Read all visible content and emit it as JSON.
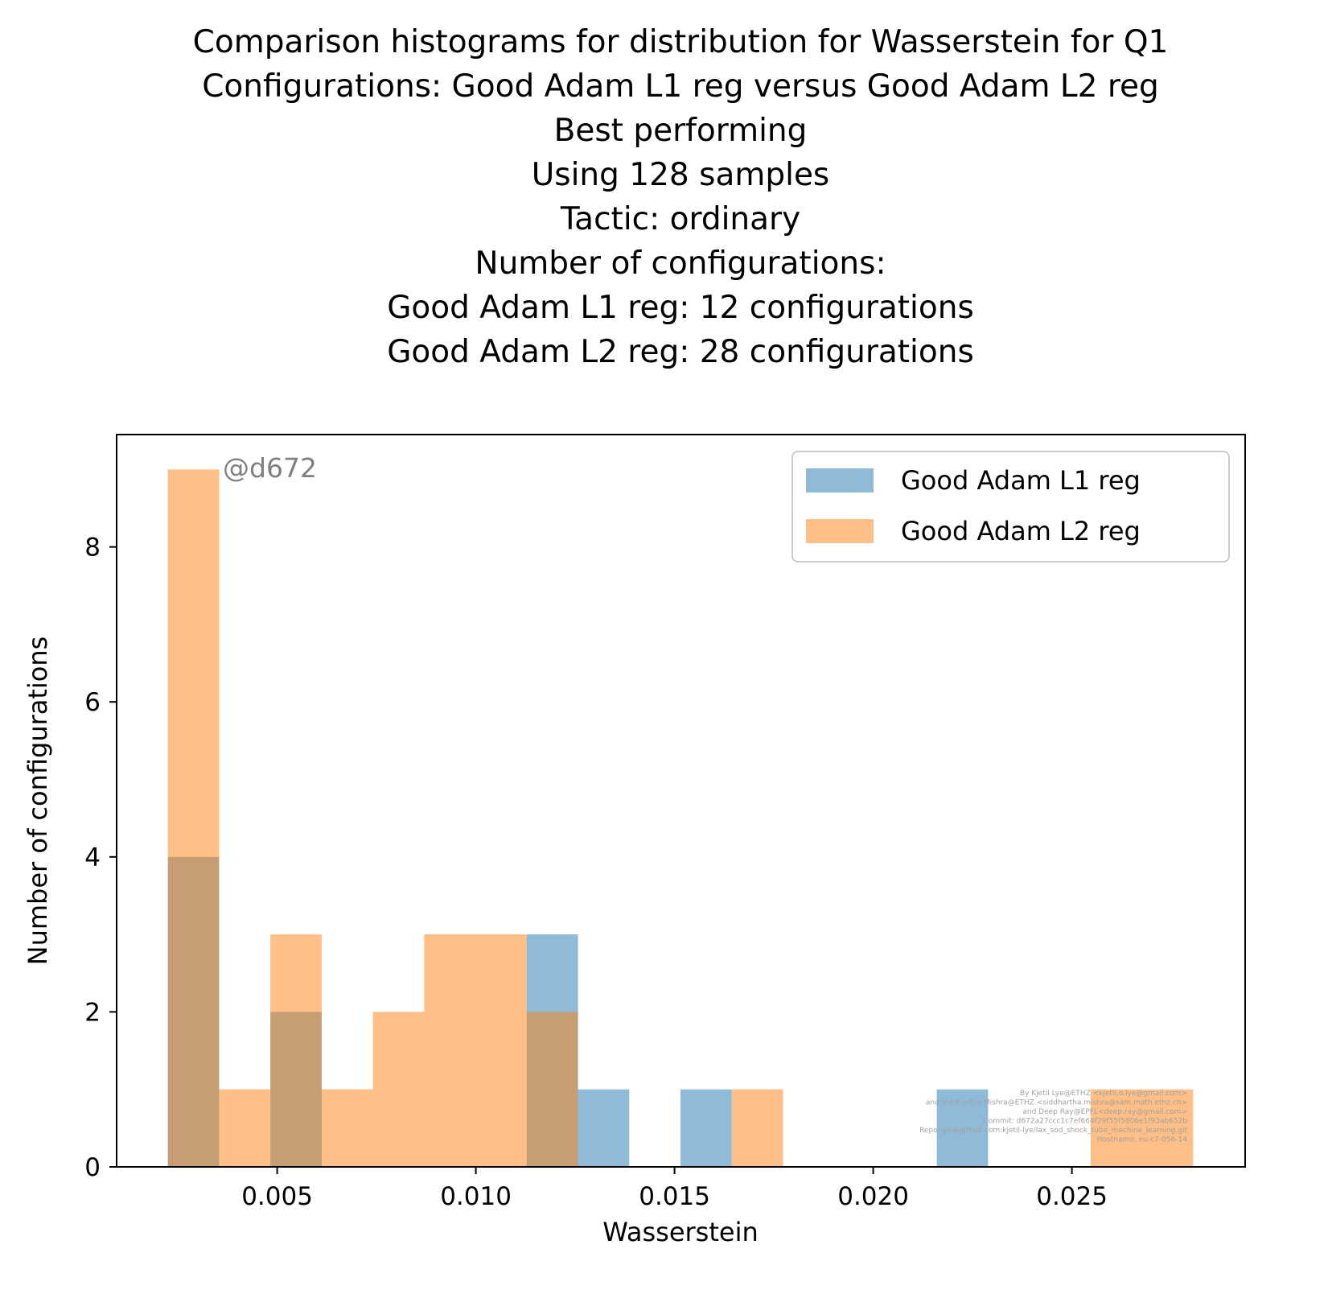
{
  "chart_data": {
    "type": "bar",
    "title_lines": [
      "Comparison histograms for distribution for Wasserstein for Q1",
      "Configurations: Good Adam L1 reg versus Good Adam L2 reg",
      "Best performing",
      "Using 128 samples",
      "Tactic: ordinary",
      "Number of configurations:",
      "Good Adam L1 reg: 12 configurations",
      "Good Adam L2 reg: 28 configurations"
    ],
    "xlabel": "Wasserstein",
    "ylabel": "Number of configurations",
    "xlim": [
      0.00096,
      0.02936
    ],
    "ylim": [
      0,
      9.45
    ],
    "xticks": [
      0.005,
      0.01,
      0.015,
      0.02,
      0.025
    ],
    "xtick_labels": [
      "0.005",
      "0.010",
      "0.015",
      "0.020",
      "0.025"
    ],
    "yticks": [
      0,
      2,
      4,
      6,
      8
    ],
    "ytick_labels": [
      "0",
      "2",
      "4",
      "6",
      "8"
    ],
    "bin_edges": [
      0.00225,
      0.00354,
      0.00483,
      0.00612,
      0.00741,
      0.0087,
      0.00999,
      0.01128,
      0.01257,
      0.01386,
      0.01515,
      0.01644,
      0.01773,
      0.01902,
      0.02031,
      0.0216,
      0.02289,
      0.02418,
      0.02547,
      0.02676,
      0.02805
    ],
    "series": [
      {
        "name": "Good Adam L1 reg",
        "color": "#1f77b4",
        "alpha": 0.5,
        "counts": [
          4,
          0,
          2,
          0,
          0,
          0,
          0,
          3,
          1,
          0,
          1,
          0,
          0,
          0,
          0,
          1,
          0,
          0,
          0,
          0
        ]
      },
      {
        "name": "Good Adam L2 reg",
        "color": "#ff7f0e",
        "alpha": 0.5,
        "counts": [
          9,
          1,
          3,
          1,
          2,
          3,
          3,
          2,
          0,
          0,
          0,
          1,
          0,
          0,
          0,
          0,
          0,
          0,
          1,
          1
        ]
      }
    ],
    "legend_position": "upper right",
    "grid": false
  },
  "watermark": "@d672",
  "credits": [
    "By Kjetil Lye@ETHZ <kjetil.o.lye@gmail.com>",
    "and Siddhartha Mishra@ETHZ <siddhartha.mishra@sam.math.ethz.ch>",
    "and Deep Ray@EPFL<deep.ray@gmail.com>",
    "Commit: d672a27ccc1c7ef664f29f55f5806e1f93ab652b",
    "Repo: git@github.com:kjetil-lye/lax_sod_shock_tube_machine_learning.git",
    "Hostname: eu-c7-056-14"
  ]
}
